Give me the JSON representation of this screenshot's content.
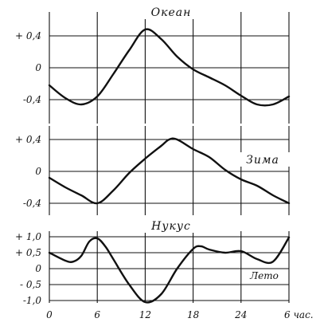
{
  "chart_data": [
    {
      "type": "line",
      "title": "Океан",
      "x": [
        0,
        2,
        4,
        6,
        8,
        10,
        12,
        14,
        16,
        18,
        20,
        22,
        24,
        26,
        28,
        30
      ],
      "series": [
        {
          "values": [
            -0.22,
            -0.38,
            -0.46,
            -0.36,
            -0.08,
            0.22,
            0.48,
            0.36,
            0.14,
            -0.02,
            -0.12,
            -0.22,
            -0.35,
            -0.46,
            -0.46,
            -0.36
          ]
        }
      ],
      "ylim": [
        -0.5,
        0.55
      ],
      "yticks": [
        {
          "value": 0.4,
          "label": "+ 0,4"
        },
        {
          "value": 0.0,
          "label": "0"
        },
        {
          "value": -0.4,
          "label": "-0,4"
        }
      ]
    },
    {
      "type": "line",
      "title": "Зима",
      "x": [
        0,
        2,
        4,
        6,
        8,
        10,
        12,
        14,
        15,
        16,
        18,
        20,
        22,
        24,
        26,
        28,
        30
      ],
      "series": [
        {
          "values": [
            -0.08,
            -0.2,
            -0.3,
            -0.4,
            -0.24,
            -0.02,
            0.16,
            0.32,
            0.4,
            0.4,
            0.28,
            0.18,
            0.02,
            -0.1,
            -0.18,
            -0.3,
            -0.4
          ]
        }
      ],
      "ylim": [
        -0.45,
        0.45
      ],
      "yticks": [
        {
          "value": 0.4,
          "label": "+ 0,4"
        },
        {
          "value": 0.0,
          "label": "0"
        },
        {
          "value": -0.4,
          "label": "-0,4"
        }
      ]
    },
    {
      "type": "line",
      "title": "Нукус",
      "annotation": "Лето",
      "x": [
        0,
        2,
        3,
        4,
        5,
        6,
        7,
        8,
        10,
        12,
        14,
        16,
        18,
        19,
        20,
        22,
        24,
        26,
        28,
        30
      ],
      "series": [
        {
          "values": [
            0.5,
            0.25,
            0.22,
            0.4,
            0.85,
            0.95,
            0.7,
            0.3,
            -0.5,
            -1.05,
            -0.8,
            0.0,
            0.62,
            0.7,
            0.6,
            0.5,
            0.55,
            0.3,
            0.22,
            0.98
          ]
        }
      ],
      "ylim": [
        -1.1,
        1.1
      ],
      "yticks": [
        {
          "value": 1.0,
          "label": "+ 1,0"
        },
        {
          "value": 0.5,
          "label": "+ 0,5"
        },
        {
          "value": 0.0,
          "label": "0"
        },
        {
          "value": -0.5,
          "label": "- 0,5"
        },
        {
          "value": -1.0,
          "label": "-1,0"
        }
      ],
      "xticks": [
        {
          "value": 0,
          "label": "0"
        },
        {
          "value": 6,
          "label": "6"
        },
        {
          "value": 12,
          "label": "12"
        },
        {
          "value": 18,
          "label": "18"
        },
        {
          "value": 24,
          "label": "24"
        },
        {
          "value": 30,
          "label": "6 час."
        }
      ]
    }
  ]
}
